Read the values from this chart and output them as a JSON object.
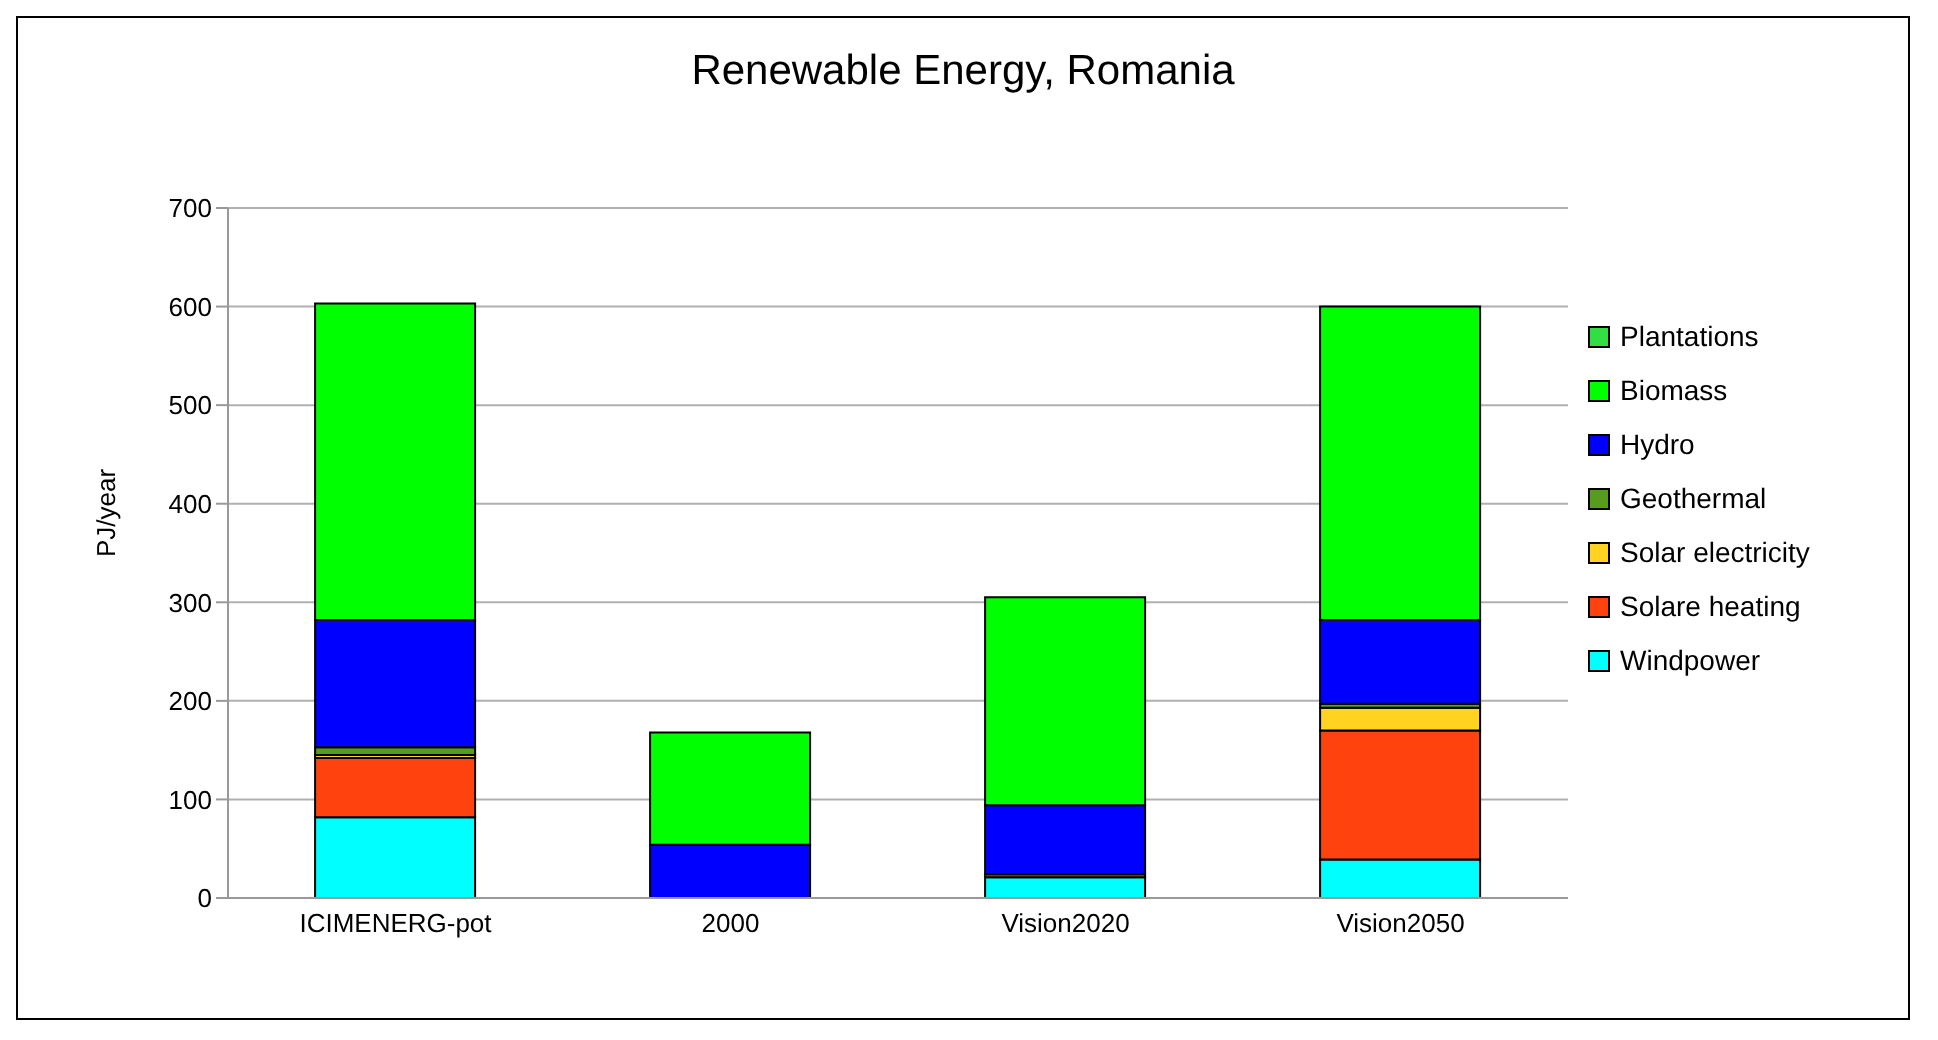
{
  "chart_data": {
    "type": "bar",
    "title": "Renewable Energy, Romania",
    "ylabel": "PJ/year",
    "stacked": true,
    "categories": [
      "ICIMENERG-pot",
      "2000",
      "Vision2020",
      "Vision2050"
    ],
    "series": [
      {
        "name": "Windpower",
        "color": "#00ffff",
        "values": [
          82,
          0,
          21,
          39
        ]
      },
      {
        "name": "Solare heating",
        "color": "#ff420e",
        "values": [
          60,
          0,
          3,
          131
        ]
      },
      {
        "name": "Solar electricity",
        "color": "#ffd320",
        "values": [
          3,
          0,
          0,
          23
        ]
      },
      {
        "name": "Geothermal",
        "color": "#579d1c",
        "values": [
          8,
          0,
          0,
          4
        ]
      },
      {
        "name": "Hydro",
        "color": "#0000ff",
        "values": [
          129,
          54,
          70,
          85
        ]
      },
      {
        "name": "Biomass",
        "color": "#00ff00",
        "values": [
          321,
          114,
          211,
          318
        ]
      },
      {
        "name": "Plantations",
        "color": "#33dd44",
        "values": [
          0,
          0,
          0,
          0
        ]
      }
    ],
    "ylim": [
      0,
      700
    ],
    "yticks": [
      0,
      100,
      200,
      300,
      400,
      500,
      600,
      700
    ],
    "grid": "y",
    "legend": "right"
  }
}
